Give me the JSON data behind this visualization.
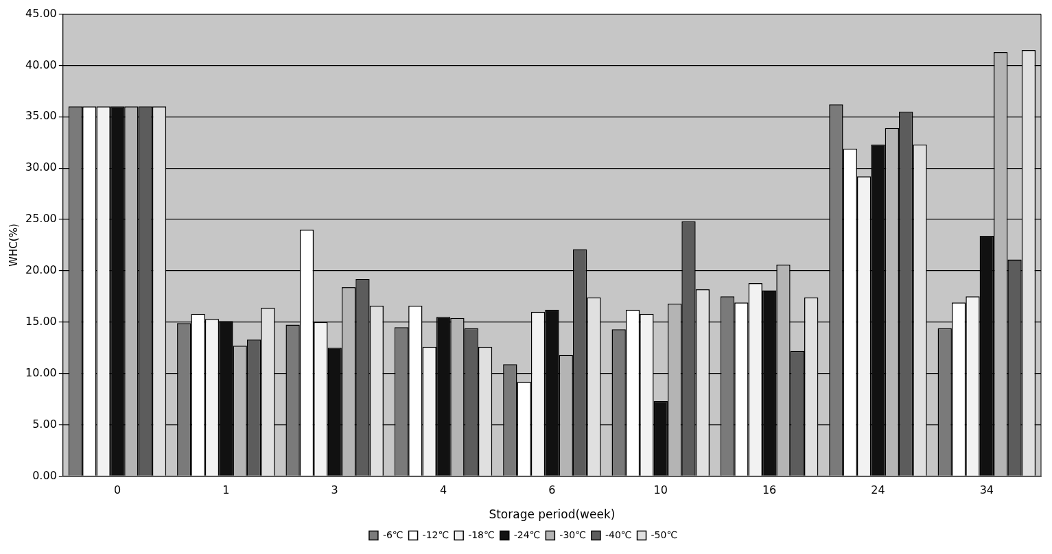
{
  "chart_data": {
    "type": "bar",
    "xlabel": "Storage period(week)",
    "ylabel": "WHC(%)",
    "categories": [
      "0",
      "1",
      "3",
      "4",
      "6",
      "10",
      "16",
      "24",
      "34"
    ],
    "series": [
      {
        "name": "-6℃",
        "color": "#7a7a7a",
        "values": [
          36,
          14.9,
          14.75,
          14.5,
          10.9,
          14.3,
          17.5,
          36.2,
          14.4
        ]
      },
      {
        "name": "-12℃",
        "color": "#ffffff",
        "values": [
          36,
          15.8,
          24.0,
          16.6,
          9.2,
          16.2,
          16.9,
          31.9,
          16.9
        ]
      },
      {
        "name": "-18℃",
        "color": "#f2f2f2",
        "values": [
          36,
          15.3,
          15.0,
          12.6,
          16.0,
          15.8,
          18.8,
          29.2,
          17.5
        ]
      },
      {
        "name": "-24℃",
        "color": "#111111",
        "values": [
          36,
          15.1,
          12.5,
          15.5,
          16.2,
          7.3,
          18.1,
          32.3,
          23.4
        ]
      },
      {
        "name": "-30℃",
        "color": "#b4b4b4",
        "values": [
          36,
          12.7,
          18.4,
          15.4,
          11.8,
          16.8,
          20.6,
          33.9,
          41.3
        ]
      },
      {
        "name": "-40℃",
        "color": "#5c5c5c",
        "values": [
          36,
          13.3,
          19.2,
          14.4,
          22.1,
          24.8,
          12.2,
          35.5,
          21.1
        ]
      },
      {
        "name": "-50℃",
        "color": "#e0e0e0",
        "values": [
          36,
          16.4,
          16.6,
          12.6,
          17.4,
          18.2,
          17.4,
          32.3,
          41.5
        ]
      }
    ],
    "ylim": [
      0,
      45
    ],
    "yticks": [
      {
        "value": 0,
        "label": "0.00"
      },
      {
        "value": 5,
        "label": "5.00"
      },
      {
        "value": 10,
        "label": "10.00"
      },
      {
        "value": 15,
        "label": "15.00"
      },
      {
        "value": 20,
        "label": "20.00"
      },
      {
        "value": 25,
        "label": "25.00"
      },
      {
        "value": 30,
        "label": "30.00"
      },
      {
        "value": 35,
        "label": "35.00"
      },
      {
        "value": 40,
        "label": "40.00"
      },
      {
        "value": 45,
        "label": "45.00"
      }
    ],
    "grid": "y",
    "legend": "bottom"
  }
}
